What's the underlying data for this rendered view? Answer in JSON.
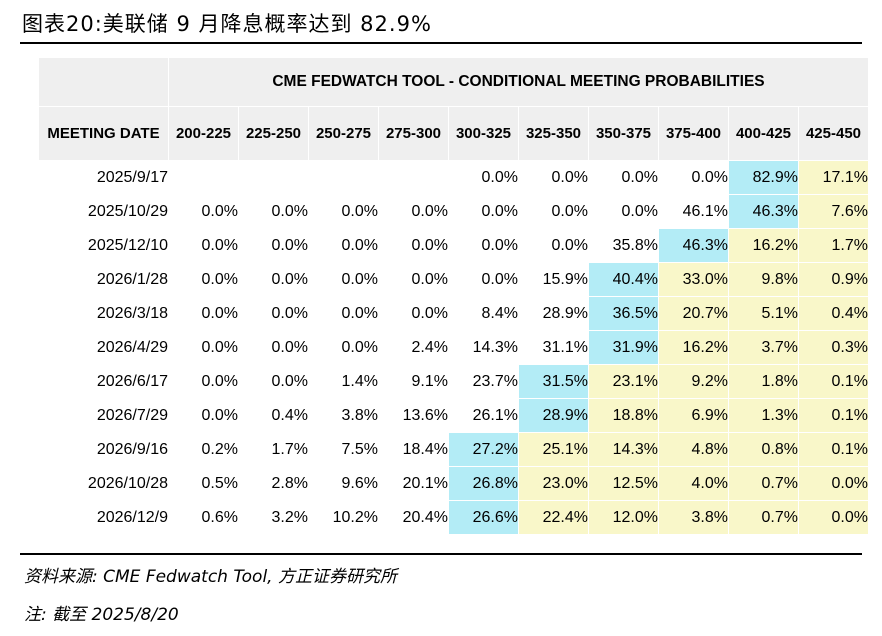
{
  "figure_title": "图表20:美联储 9 月降息概率达到 82.9%",
  "table": {
    "banner": "CME FEDWATCH TOOL - CONDITIONAL MEETING PROBABILITIES",
    "date_header": "MEETING DATE",
    "columns": [
      "200-225",
      "225-250",
      "250-275",
      "275-300",
      "300-325",
      "325-350",
      "350-375",
      "375-400",
      "400-425",
      "425-450"
    ],
    "rows": [
      {
        "date": "2025/9/17",
        "values": [
          "",
          "",
          "",
          "",
          "0.0%",
          "0.0%",
          "0.0%",
          "0.0%",
          "82.9%",
          "17.1%"
        ]
      },
      {
        "date": "2025/10/29",
        "values": [
          "0.0%",
          "0.0%",
          "0.0%",
          "0.0%",
          "0.0%",
          "0.0%",
          "0.0%",
          "46.1%",
          "46.3%",
          "7.6%"
        ]
      },
      {
        "date": "2025/12/10",
        "values": [
          "0.0%",
          "0.0%",
          "0.0%",
          "0.0%",
          "0.0%",
          "0.0%",
          "35.8%",
          "46.3%",
          "16.2%",
          "1.7%"
        ]
      },
      {
        "date": "2026/1/28",
        "values": [
          "0.0%",
          "0.0%",
          "0.0%",
          "0.0%",
          "0.0%",
          "15.9%",
          "40.4%",
          "33.0%",
          "9.8%",
          "0.9%"
        ]
      },
      {
        "date": "2026/3/18",
        "values": [
          "0.0%",
          "0.0%",
          "0.0%",
          "0.0%",
          "8.4%",
          "28.9%",
          "36.5%",
          "20.7%",
          "5.1%",
          "0.4%"
        ]
      },
      {
        "date": "2026/4/29",
        "values": [
          "0.0%",
          "0.0%",
          "0.0%",
          "2.4%",
          "14.3%",
          "31.1%",
          "31.9%",
          "16.2%",
          "3.7%",
          "0.3%"
        ]
      },
      {
        "date": "2026/6/17",
        "values": [
          "0.0%",
          "0.0%",
          "1.4%",
          "9.1%",
          "23.7%",
          "31.5%",
          "23.1%",
          "9.2%",
          "1.8%",
          "0.1%"
        ]
      },
      {
        "date": "2026/7/29",
        "values": [
          "0.0%",
          "0.4%",
          "3.8%",
          "13.6%",
          "26.1%",
          "28.9%",
          "18.8%",
          "6.9%",
          "1.3%",
          "0.1%"
        ]
      },
      {
        "date": "2026/9/16",
        "values": [
          "0.2%",
          "1.7%",
          "7.5%",
          "18.4%",
          "27.2%",
          "25.1%",
          "14.3%",
          "4.8%",
          "0.8%",
          "0.1%"
        ]
      },
      {
        "date": "2026/10/28",
        "values": [
          "0.5%",
          "2.8%",
          "9.6%",
          "20.1%",
          "26.8%",
          "23.0%",
          "12.5%",
          "4.0%",
          "0.7%",
          "0.0%"
        ]
      },
      {
        "date": "2026/12/9",
        "values": [
          "0.6%",
          "3.2%",
          "10.2%",
          "20.4%",
          "26.6%",
          "22.4%",
          "12.0%",
          "3.8%",
          "0.7%",
          "0.0%"
        ]
      }
    ],
    "highlight": {
      "blue_color": "#b3ecf6",
      "yellow_color": "#f9f7c9",
      "blue_cells": [
        [
          0,
          8
        ],
        [
          1,
          8
        ],
        [
          2,
          7
        ],
        [
          3,
          6
        ],
        [
          4,
          6
        ],
        [
          5,
          6
        ],
        [
          6,
          5
        ],
        [
          7,
          5
        ],
        [
          8,
          4
        ],
        [
          9,
          4
        ],
        [
          10,
          4
        ]
      ]
    }
  },
  "source": "资料来源: CME Fedwatch Tool, 方正证券研究所",
  "note": "注: 截至 2025/8/20"
}
